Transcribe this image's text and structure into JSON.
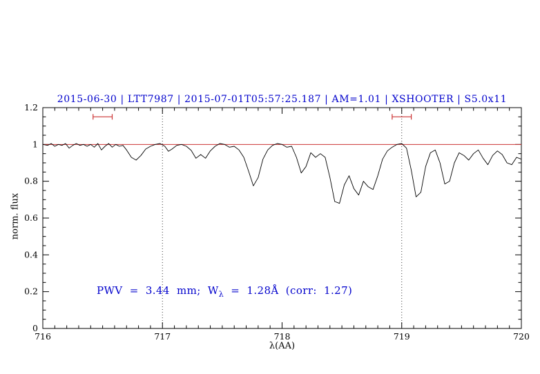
{
  "header": {
    "title": "2015-06-30 | LTT7987 | 2015-07-01T05:57:25.187 | AM=1.01 | XSHOOTER | S5.0x11"
  },
  "annotation": {
    "pre": "PWV = 3.44 mm; W",
    "sub": "λ",
    "post": " = 1.28Å (corr: 1.27)"
  },
  "colors": {
    "title_blue": "#0000cc",
    "annotation_blue": "#0000cc",
    "continuum_red": "#cc3333",
    "marker_red": "#cc3333",
    "spectrum_black": "#000000"
  },
  "chart_data": {
    "type": "line",
    "title": "2015-06-30 | LTT7987 | 2015-07-01T05:57:25.187 | AM=1.01 | XSHOOTER | S5.0x11",
    "xlabel": "λ(AA)",
    "ylabel": "norm. flux",
    "xlim": [
      716,
      720
    ],
    "ylim": [
      0,
      1.2
    ],
    "grid": false,
    "x_ticks": [
      716,
      717,
      718,
      719,
      720
    ],
    "x_tick_labels": [
      "716",
      "717",
      "718",
      "719",
      "720"
    ],
    "y_ticks": [
      0,
      0.2,
      0.4,
      0.6,
      0.8,
      1,
      1.2
    ],
    "y_tick_labels": [
      "0",
      "0.2",
      "0.4",
      "0.6",
      "0.8",
      "1",
      "1.2"
    ],
    "x_minor_step": 0.1,
    "y_minor_step": 0.05,
    "vlines": {
      "x": [
        717,
        719
      ],
      "style": "dotted",
      "color": "#333333"
    },
    "continuum": {
      "y": 1.0,
      "color": "#cc3333"
    },
    "region_markers": {
      "y": 1.15,
      "color": "#cc3333",
      "intervals": [
        [
          716.42,
          716.58
        ],
        [
          718.92,
          719.08
        ]
      ]
    },
    "annotation": {
      "text": "PWV = 3.44 mm; W_λ = 1.28Å (corr: 1.27)",
      "x": 716.45,
      "y": 0.2,
      "color": "#0000cc"
    },
    "series": [
      {
        "name": "spectrum",
        "color": "#000000",
        "x": [
          716.0,
          716.04,
          716.07,
          716.1,
          716.13,
          716.16,
          716.19,
          716.22,
          716.25,
          716.28,
          716.31,
          716.34,
          716.37,
          716.4,
          716.43,
          716.46,
          716.49,
          716.52,
          716.55,
          716.58,
          716.61,
          716.64,
          716.67,
          716.7,
          716.74,
          716.78,
          716.82,
          716.86,
          716.9,
          716.94,
          716.98,
          717.02,
          717.05,
          717.08,
          717.12,
          717.16,
          717.2,
          717.24,
          717.28,
          717.32,
          717.36,
          717.4,
          717.44,
          717.48,
          717.52,
          717.56,
          717.6,
          717.64,
          717.68,
          717.72,
          717.76,
          717.8,
          717.84,
          717.88,
          717.92,
          717.96,
          718.0,
          718.04,
          718.08,
          718.12,
          718.16,
          718.2,
          718.24,
          718.28,
          718.32,
          718.36,
          718.4,
          718.44,
          718.48,
          718.52,
          718.56,
          718.6,
          718.64,
          718.68,
          718.72,
          718.76,
          718.8,
          718.84,
          718.88,
          718.92,
          718.96,
          719.0,
          719.04,
          719.08,
          719.12,
          719.16,
          719.2,
          719.24,
          719.28,
          719.32,
          719.36,
          719.4,
          719.44,
          719.48,
          719.52,
          719.56,
          719.6,
          719.64,
          719.68,
          719.72,
          719.76,
          719.8,
          719.84,
          719.88,
          719.92,
          719.96,
          720.0
        ],
        "y": [
          1.0,
          0.995,
          1.005,
          0.99,
          1.0,
          0.995,
          1.005,
          0.98,
          0.995,
          1.005,
          0.995,
          1.0,
          0.99,
          1.0,
          0.985,
          1.005,
          0.97,
          0.99,
          1.005,
          0.985,
          1.0,
          0.99,
          0.995,
          0.97,
          0.93,
          0.915,
          0.94,
          0.975,
          0.99,
          1.0,
          1.005,
          0.99,
          0.963,
          0.975,
          0.995,
          1.0,
          0.99,
          0.968,
          0.925,
          0.945,
          0.925,
          0.965,
          0.99,
          1.005,
          1.0,
          0.985,
          0.99,
          0.97,
          0.93,
          0.855,
          0.775,
          0.82,
          0.92,
          0.97,
          0.995,
          1.005,
          1.0,
          0.985,
          0.99,
          0.93,
          0.845,
          0.88,
          0.955,
          0.93,
          0.95,
          0.93,
          0.82,
          0.69,
          0.68,
          0.78,
          0.83,
          0.76,
          0.725,
          0.8,
          0.77,
          0.755,
          0.83,
          0.92,
          0.965,
          0.985,
          1.0,
          1.005,
          0.98,
          0.86,
          0.715,
          0.74,
          0.88,
          0.955,
          0.97,
          0.9,
          0.785,
          0.8,
          0.9,
          0.955,
          0.94,
          0.915,
          0.95,
          0.97,
          0.925,
          0.89,
          0.94,
          0.965,
          0.945,
          0.9,
          0.89,
          0.93,
          0.92
        ]
      }
    ]
  }
}
